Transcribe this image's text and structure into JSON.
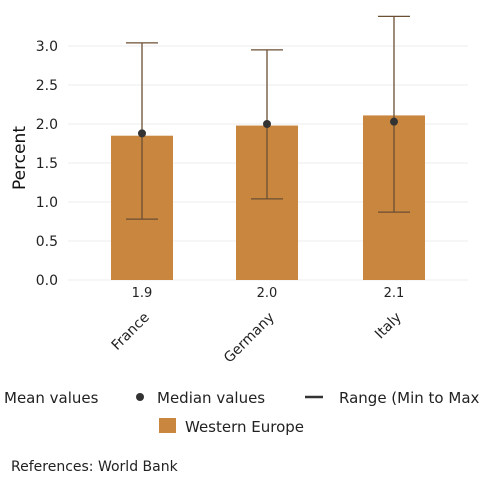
{
  "chart_data": {
    "type": "bar",
    "categories": [
      "France",
      "Germany",
      "Italy"
    ],
    "values": [
      1.85,
      1.98,
      2.11
    ],
    "data_labels": [
      "1.9",
      "2.0",
      "2.1"
    ],
    "median": [
      1.88,
      2.0,
      2.03
    ],
    "range_min": [
      0.78,
      1.04,
      0.87
    ],
    "range_max": [
      3.04,
      2.95,
      3.38
    ],
    "ylabel": "Percent",
    "ylim": [
      0,
      3.4
    ],
    "yticks": [
      0.0,
      0.5,
      1.0,
      1.5,
      2.0,
      2.5,
      3.0
    ],
    "ytick_labels": [
      "0.0",
      "0.5",
      "1.0",
      "1.5",
      "2.0",
      "2.5",
      "3.0"
    ],
    "grid": true,
    "legend_placement": "bottom",
    "legend": {
      "mean": "Mean values",
      "median": "Median values",
      "range": "Range (Min to Max)",
      "group": "Western Europe"
    },
    "source_note": "References: World Bank",
    "colors": {
      "bar": "#c8863f",
      "errorbar": "#6b4f33",
      "median": "#333333",
      "grid": "#eeeeee"
    }
  }
}
